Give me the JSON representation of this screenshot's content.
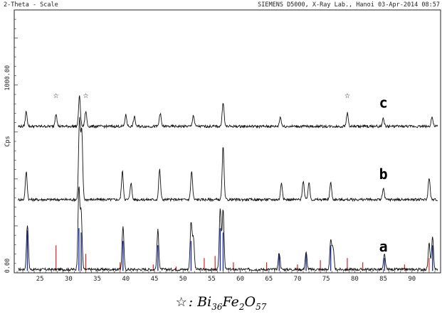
{
  "header": {
    "left": "2-Theta - Scale",
    "right": "SIEMENS D5000, X-Ray Lab., Hanoi 03-Apr-2014 08:57"
  },
  "caption": {
    "marker": "☆",
    "formula_prefix": ": Bi",
    "sub1": "36",
    "mid1": "Fe",
    "sub2": "2",
    "mid2": "O",
    "sub3": "57"
  },
  "chart_data": {
    "type": "line",
    "xlabel": "2-Theta - Scale",
    "ylabel": "Cps",
    "xlim": [
      20.5,
      95
    ],
    "ylim": [
      0,
      1400
    ],
    "x_ticks": [
      25,
      30,
      35,
      40,
      45,
      50,
      55,
      60,
      65,
      70,
      75,
      80,
      85,
      90
    ],
    "y_tick_labels": [
      {
        "value": 0,
        "label": "0.00"
      },
      {
        "value": 1000,
        "label": "1000.00"
      }
    ],
    "grid": false,
    "series": [
      {
        "name": "a",
        "offset": 18,
        "peaks": [
          [
            22.8,
            240
          ],
          [
            31.8,
            430
          ],
          [
            32.2,
            300
          ],
          [
            39.5,
            230
          ],
          [
            45.6,
            210
          ],
          [
            51.4,
            250
          ],
          [
            51.8,
            170
          ],
          [
            56.5,
            330
          ],
          [
            57.0,
            320
          ],
          [
            66.8,
            90
          ],
          [
            71.5,
            90
          ],
          [
            75.8,
            150
          ],
          [
            76.2,
            120
          ],
          [
            85.2,
            80
          ],
          [
            93.0,
            140
          ],
          [
            93.6,
            170
          ]
        ]
      },
      {
        "name": "b",
        "offset": 390,
        "peaks": [
          [
            22.6,
            150
          ],
          [
            31.9,
            420
          ],
          [
            32.3,
            360
          ],
          [
            39.4,
            150
          ],
          [
            40.9,
            90
          ],
          [
            45.9,
            160
          ],
          [
            51.5,
            150
          ],
          [
            57.0,
            280
          ],
          [
            67.2,
            90
          ],
          [
            71.0,
            100
          ],
          [
            72.0,
            90
          ],
          [
            75.8,
            90
          ],
          [
            85.0,
            60
          ],
          [
            93.0,
            120
          ]
        ]
      },
      {
        "name": "c",
        "offset": 780,
        "peaks": [
          [
            22.6,
            80
          ],
          [
            27.8,
            70
          ],
          [
            31.9,
            160
          ],
          [
            33.0,
            80
          ],
          [
            40.0,
            60
          ],
          [
            41.5,
            50
          ],
          [
            46.0,
            70
          ],
          [
            51.8,
            60
          ],
          [
            57.0,
            130
          ],
          [
            67.0,
            50
          ],
          [
            78.7,
            70
          ],
          [
            85.0,
            40
          ],
          [
            93.5,
            50
          ]
        ]
      }
    ],
    "star_markers_x": [
      27.8,
      33.0,
      78.7
    ],
    "reference_lines_blue": [
      [
        22.8,
        0.95
      ],
      [
        31.8,
        1.0
      ],
      [
        32.2,
        0.9
      ],
      [
        39.5,
        0.7
      ],
      [
        45.6,
        0.6
      ],
      [
        51.4,
        0.7
      ],
      [
        56.5,
        1.0
      ],
      [
        57.0,
        0.9
      ],
      [
        66.8,
        0.4
      ],
      [
        71.5,
        0.4
      ],
      [
        75.8,
        0.6
      ],
      [
        85.2,
        0.3
      ],
      [
        93.6,
        0.6
      ]
    ],
    "reference_lines_red": [
      [
        27.8,
        0.6
      ],
      [
        33.0,
        0.4
      ],
      [
        39.0,
        0.2
      ],
      [
        44.8,
        0.15
      ],
      [
        48.8,
        0.1
      ],
      [
        53.7,
        0.3
      ],
      [
        55.6,
        0.35
      ],
      [
        58.8,
        0.2
      ],
      [
        64.6,
        0.2
      ],
      [
        70.0,
        0.15
      ],
      [
        74.0,
        0.25
      ],
      [
        78.7,
        0.3
      ],
      [
        81.4,
        0.2
      ],
      [
        88.7,
        0.15
      ],
      [
        93.0,
        0.3
      ]
    ]
  }
}
